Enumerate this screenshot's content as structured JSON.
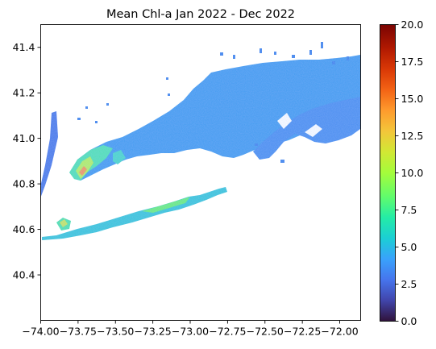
{
  "map": {
    "title": "Mean Chl-a Jan 2022 - Dec 2022",
    "x_ticks": [
      {
        "value": -74.0,
        "label": "−74.00"
      },
      {
        "value": -73.75,
        "label": "−73.75"
      },
      {
        "value": -73.5,
        "label": "−73.50"
      },
      {
        "value": -73.25,
        "label": "−73.25"
      },
      {
        "value": -73.0,
        "label": "−73.00"
      },
      {
        "value": -72.75,
        "label": "−72.75"
      },
      {
        "value": -72.5,
        "label": "−72.50"
      },
      {
        "value": -72.25,
        "label": "−72.25"
      },
      {
        "value": -72.0,
        "label": "−72.00"
      }
    ],
    "y_ticks": [
      {
        "value": 40.4,
        "label": "40.4"
      },
      {
        "value": 40.6,
        "label": "40.6"
      },
      {
        "value": 40.8,
        "label": "40.8"
      },
      {
        "value": 41.0,
        "label": "41.0"
      },
      {
        "value": 41.2,
        "label": "41.2"
      },
      {
        "value": 41.4,
        "label": "41.4"
      }
    ],
    "xlim": [
      -74.0,
      -71.86
    ],
    "ylim": [
      40.2,
      41.5
    ],
    "colorbar": {
      "range": [
        0.0,
        20.0
      ],
      "ticks": [
        {
          "value": 0.0,
          "label": "0.0"
        },
        {
          "value": 2.5,
          "label": "2.5"
        },
        {
          "value": 5.0,
          "label": "5.0"
        },
        {
          "value": 7.5,
          "label": "7.5"
        },
        {
          "value": 10.0,
          "label": "10.0"
        },
        {
          "value": 12.5,
          "label": "12.5"
        },
        {
          "value": 15.0,
          "label": "15.0"
        },
        {
          "value": 17.5,
          "label": "17.5"
        },
        {
          "value": 20.0,
          "label": "20.0"
        }
      ],
      "colormap": [
        "#30123b",
        "#4145ab",
        "#4675ed",
        "#39a2fc",
        "#1bcfd4",
        "#24eca6",
        "#61fc6c",
        "#a4fc3b",
        "#d1e834",
        "#f3c63a",
        "#fe9b2d",
        "#f36315",
        "#d93806",
        "#b11901",
        "#7a0402"
      ]
    }
  }
}
